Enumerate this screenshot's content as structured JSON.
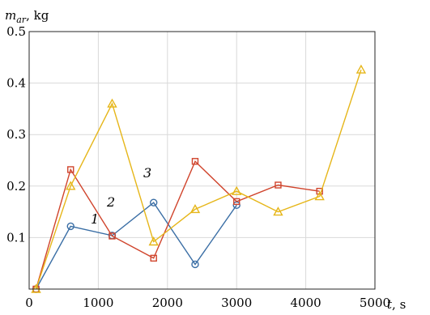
{
  "chart_data": {
    "type": "line",
    "title": "",
    "xlabel": "t, s",
    "ylabel": "m_ar, kg",
    "xlim": [
      0,
      5000
    ],
    "ylim": [
      0,
      0.5
    ],
    "xticks": [
      "0",
      "1000",
      "2000",
      "3000",
      "4000",
      "5000"
    ],
    "yticks": [
      "0.1",
      "0.2",
      "0.3",
      "0.4",
      "0.5"
    ],
    "grid": true,
    "series": [
      {
        "name": "1",
        "color": "#3a6ea5",
        "marker": "circle",
        "x": [
          100,
          600,
          1200,
          1800,
          2400,
          3000
        ],
        "y": [
          0.0,
          0.122,
          0.104,
          0.168,
          0.048,
          0.163
        ]
      },
      {
        "name": "2",
        "color": "#d0442c",
        "marker": "square",
        "x": [
          100,
          600,
          1200,
          1800,
          2400,
          3000,
          3600,
          4200
        ],
        "y": [
          0.0,
          0.232,
          0.103,
          0.06,
          0.248,
          0.17,
          0.202,
          0.19
        ]
      },
      {
        "name": "3",
        "color": "#e6b619",
        "marker": "triangle",
        "x": [
          100,
          600,
          1200,
          1800,
          2400,
          3000,
          3600,
          4200,
          4800
        ],
        "y": [
          0.0,
          0.2,
          0.36,
          0.092,
          0.155,
          0.19,
          0.15,
          0.18,
          0.426
        ]
      }
    ]
  }
}
